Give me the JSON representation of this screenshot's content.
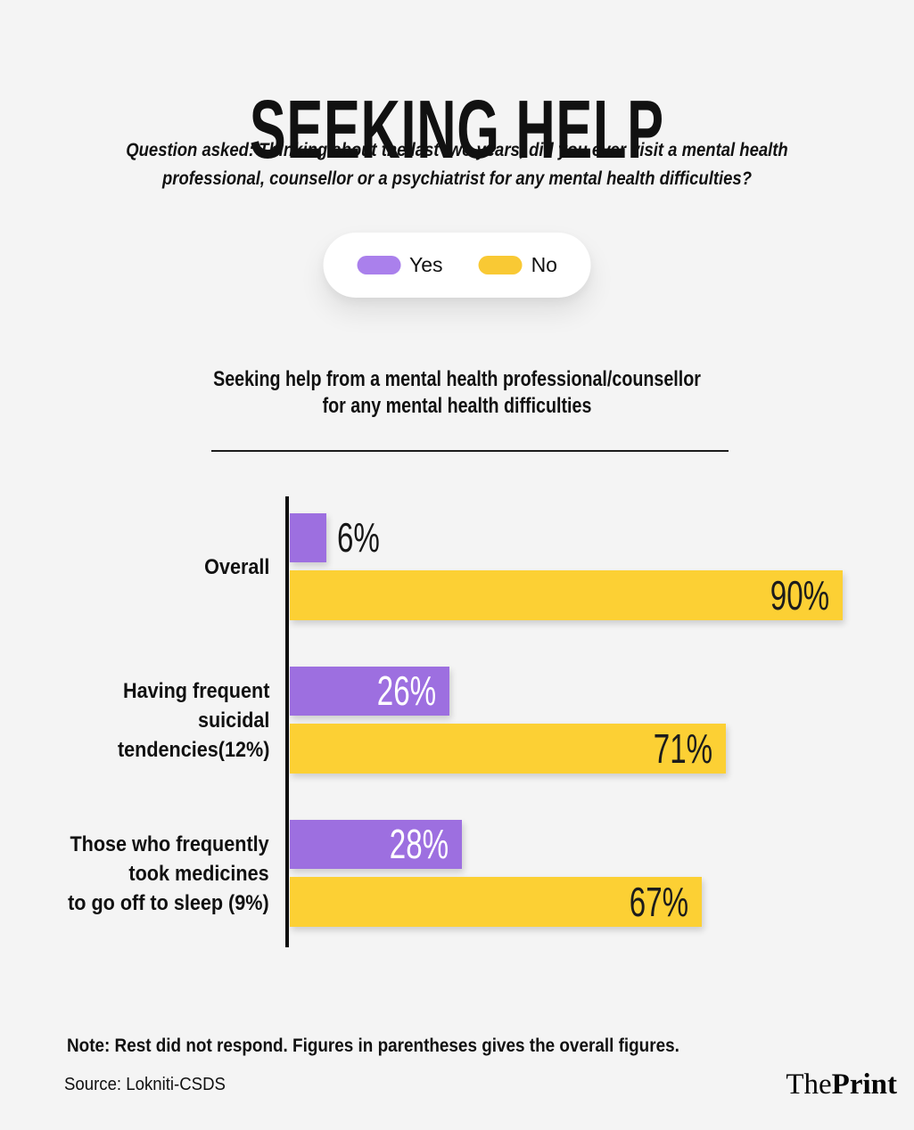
{
  "colors": {
    "background": "#f4f4f4",
    "text": "#111111",
    "yes": "#9d6fe0",
    "no": "#fcd034",
    "legend_yes": "#aa80ec",
    "legend_no": "#f9c934",
    "axis": "#0d0d0d",
    "value_on_yes": "#ffffff",
    "value_on_no": "#1c1c1c",
    "value_on_light": "#161616"
  },
  "header": {
    "title": "SEEKING HELP",
    "question_line1": "Question asked: Thinking about the last two years, did you ever visit a mental health",
    "question_line2": "professional, counsellor or a psychiatrist for any mental health difficulties?"
  },
  "legend": {
    "items": [
      {
        "label": "Yes",
        "color": "#aa80ec"
      },
      {
        "label": "No",
        "color": "#f9c934"
      }
    ]
  },
  "chart": {
    "title_line1": "Seeking help from a mental health professional/counsellor",
    "title_line2": "for any mental health difficulties"
  },
  "chart_data": {
    "type": "bar",
    "orientation": "horizontal",
    "title": "Seeking help from a mental health professional/counsellor for any mental health difficulties",
    "unit": "%",
    "categories": [
      "Overall",
      "Having frequent suicidal tendencies(12%)",
      "Those who frequently took medicines to go off to sleep (9%)"
    ],
    "category_label_lines": [
      [
        "Overall"
      ],
      [
        "Having frequent",
        "suicidal",
        "tendencies(12%)"
      ],
      [
        "Those who frequently",
        "took medicines",
        "to go off to sleep (9%)"
      ]
    ],
    "series": [
      {
        "name": "Yes",
        "color": "#9d6fe0",
        "values": [
          6,
          26,
          28
        ]
      },
      {
        "name": "No",
        "color": "#fcd034",
        "values": [
          90,
          71,
          67
        ]
      }
    ],
    "xlim": [
      0,
      100
    ],
    "grid": false,
    "legend_position": "top-center",
    "value_labels": "right-aligned inside bars; values too small for the bar are placed outside to the right"
  },
  "footer": {
    "note": "Note: Rest did not respond. Figures in parentheses gives the overall figures.",
    "source": "Source: Lokniti-CSDS",
    "logo_the": "The",
    "logo_print": "Print"
  }
}
